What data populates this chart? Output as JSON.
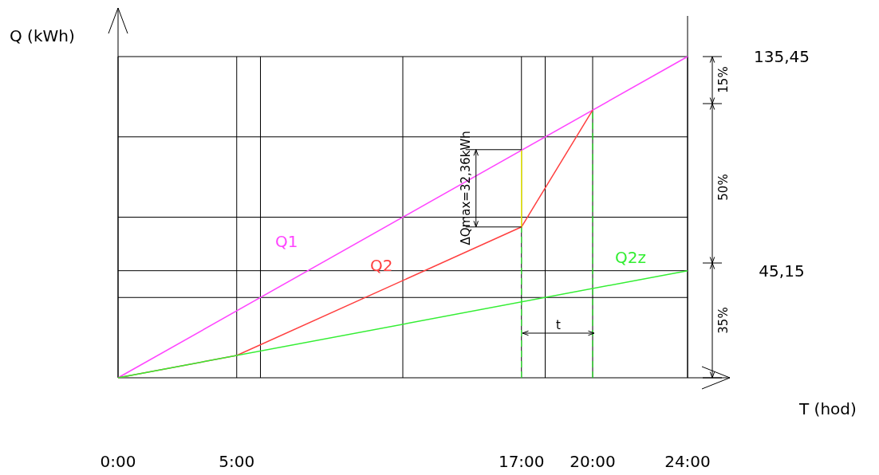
{
  "chart_data": {
    "type": "line",
    "xlabel": "T (hod)",
    "ylabel": "Q (kWh)",
    "xlim": [
      0,
      24
    ],
    "ylim": [
      0,
      135.45
    ],
    "xticks": [
      {
        "value": 0,
        "label": "0:00"
      },
      {
        "value": 5,
        "label": "5:00"
      },
      {
        "value": 6,
        "label": null
      },
      {
        "value": 12,
        "label": null
      },
      {
        "value": 17,
        "label": "17:00"
      },
      {
        "value": 18,
        "label": null
      },
      {
        "value": 20,
        "label": "20:00"
      },
      {
        "value": 24,
        "label": "24:00"
      }
    ],
    "yticks": [
      {
        "value": 33.86,
        "label": null
      },
      {
        "value": 45.15,
        "label": "45,15"
      },
      {
        "value": 67.73,
        "label": null
      },
      {
        "value": 101.59,
        "label": null
      },
      {
        "value": 135.45,
        "label": "135,45"
      }
    ],
    "grid": true,
    "line_style": "solid",
    "legend": false,
    "series": [
      {
        "name": "Q1",
        "color": "#ff44ff",
        "x": [
          0,
          24
        ],
        "values": [
          0,
          135.45
        ]
      },
      {
        "name": "Q2",
        "color": "#ff4040",
        "x": [
          0,
          5,
          17,
          20
        ],
        "values": [
          0,
          9.4,
          63.6,
          112.9
        ]
      },
      {
        "name": "Q2z",
        "color": "#33ee33",
        "x": [
          0,
          24
        ],
        "values": [
          0,
          45.15
        ]
      },
      {
        "color": "#e6e600",
        "x": [
          17,
          17
        ],
        "values": [
          63.6,
          95.9
        ]
      }
    ],
    "ref_lines": [
      {
        "axis": "x",
        "value": 17,
        "color": "#33ee33",
        "line_style": "dashed"
      },
      {
        "axis": "x",
        "value": 20,
        "color": "#33ee33",
        "line_style": "dashed"
      }
    ],
    "annotations": [
      {
        "text": "ΔQmax=32,36kWh",
        "x": 17,
        "y": 63.6
      },
      "t",
      "15%",
      "50%",
      "35%"
    ]
  }
}
